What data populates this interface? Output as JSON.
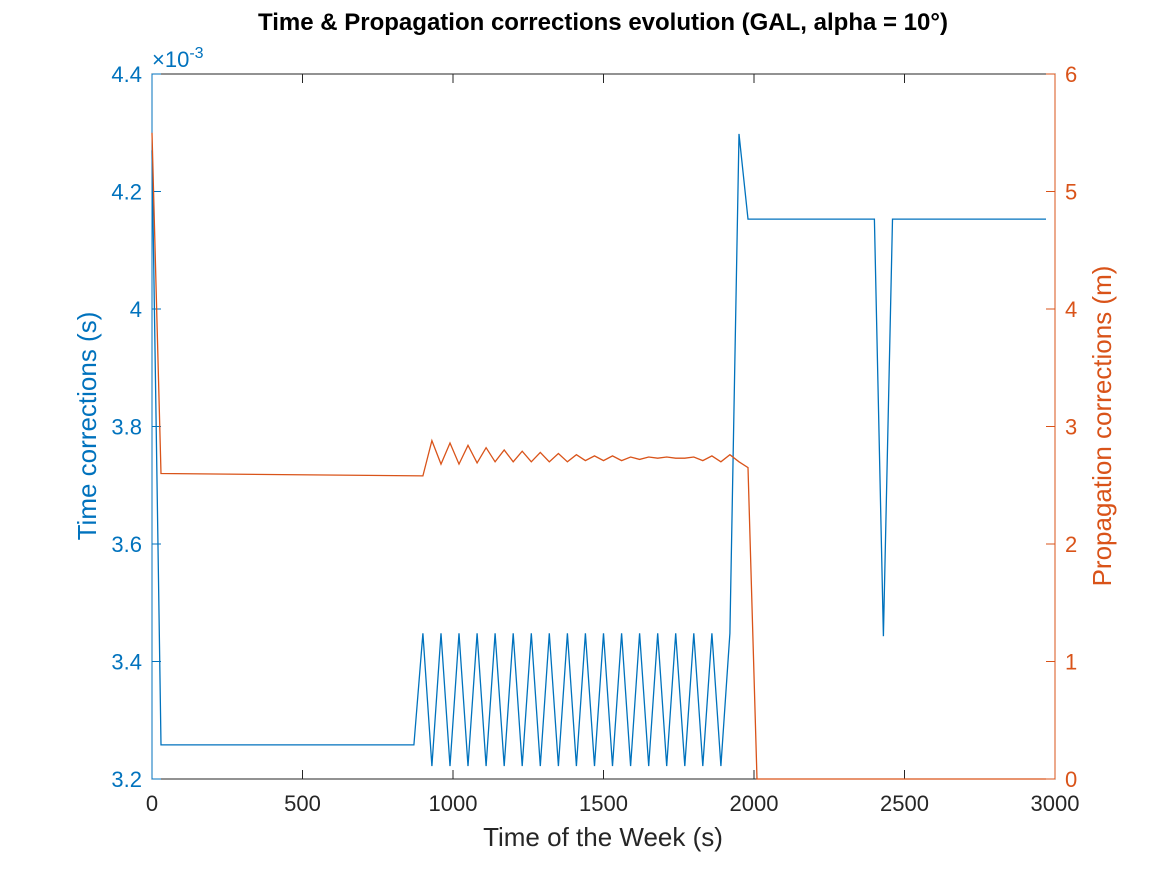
{
  "chart_data": {
    "type": "line",
    "title": "Time & Propagation corrections evolution (GAL, alpha = 10°)",
    "xlabel": "Time of the Week (s)",
    "xlim": [
      0,
      3000
    ],
    "xticks": [
      0,
      500,
      1000,
      1500,
      2000,
      2500,
      3000
    ],
    "left_axis": {
      "label": "Time corrections (s)",
      "ylim": [
        0.0032,
        0.0044
      ],
      "ticks": [
        3.2,
        3.4,
        3.6,
        3.8,
        4.0,
        4.2,
        4.4
      ],
      "tick_labels": [
        "3.2",
        "3.4",
        "3.6",
        "3.8",
        "4",
        "4.2",
        "4.4"
      ],
      "exponent_base": "×10",
      "exponent_power": "-3",
      "color": "#0072BD"
    },
    "right_axis": {
      "label": "Propagation corrections (m)",
      "ylim": [
        0,
        6
      ],
      "ticks": [
        0,
        1,
        2,
        3,
        4,
        5,
        6
      ],
      "tick_labels": [
        "0",
        "1",
        "2",
        "3",
        "4",
        "5",
        "6"
      ],
      "color": "#D95319"
    },
    "grid": false,
    "series": [
      {
        "axis": "left",
        "color": "#0072BD",
        "x": [
          0,
          30,
          870,
          900,
          930,
          960,
          990,
          1020,
          1050,
          1080,
          1110,
          1140,
          1170,
          1200,
          1230,
          1260,
          1290,
          1320,
          1350,
          1380,
          1410,
          1440,
          1470,
          1500,
          1530,
          1560,
          1590,
          1620,
          1650,
          1680,
          1710,
          1740,
          1770,
          1800,
          1830,
          1860,
          1890,
          1920,
          1950,
          1980,
          2010,
          2040,
          2070,
          2100,
          2130,
          2160,
          2190,
          2220,
          2250,
          2280,
          2310,
          2340,
          2370,
          2400,
          2430,
          2460,
          2490,
          2520,
          2550,
          2580,
          2610,
          2640,
          2670,
          2700,
          2730,
          2760,
          2790,
          2820,
          2850,
          2880,
          2910,
          2940,
          2970
        ],
        "y": [
          0.00427,
          0.003258,
          0.003258,
          0.003448,
          0.003222,
          0.003448,
          0.003222,
          0.003448,
          0.003222,
          0.003448,
          0.003222,
          0.003448,
          0.003222,
          0.003448,
          0.003222,
          0.003448,
          0.003222,
          0.003448,
          0.003222,
          0.003448,
          0.003222,
          0.003448,
          0.003222,
          0.003448,
          0.003222,
          0.003448,
          0.003222,
          0.003448,
          0.003222,
          0.003448,
          0.003222,
          0.003448,
          0.003222,
          0.003448,
          0.003222,
          0.003448,
          0.003222,
          0.003448,
          0.004298,
          0.004153,
          0.004153,
          0.004153,
          0.004153,
          0.004153,
          0.004153,
          0.004153,
          0.004153,
          0.004153,
          0.004153,
          0.004153,
          0.004153,
          0.004153,
          0.004153,
          0.004153,
          0.003443,
          0.004153,
          0.004153,
          0.004153,
          0.004153,
          0.004153,
          0.004153,
          0.004153,
          0.004153,
          0.004153,
          0.004153,
          0.004153,
          0.004153,
          0.004153,
          0.004153,
          0.004153,
          0.004153,
          0.004153,
          0.004153
        ]
      },
      {
        "axis": "right",
        "color": "#D95319",
        "x": [
          0,
          30,
          900,
          930,
          960,
          990,
          1020,
          1050,
          1080,
          1110,
          1140,
          1170,
          1200,
          1230,
          1260,
          1290,
          1320,
          1350,
          1380,
          1410,
          1440,
          1470,
          1500,
          1530,
          1560,
          1590,
          1620,
          1650,
          1680,
          1710,
          1740,
          1770,
          1800,
          1830,
          1860,
          1890,
          1920,
          1950,
          1980,
          2010,
          2040,
          2070,
          2100,
          2130,
          2160,
          2190,
          2220,
          2250,
          2280,
          2310,
          2340,
          2370,
          2400,
          2430,
          2460,
          2490,
          2520,
          2550,
          2580,
          2610,
          2640,
          2670,
          2700,
          2730,
          2760,
          2790,
          2820,
          2850,
          2880,
          2910,
          2940,
          2970
        ],
        "y": [
          5.5,
          2.6,
          2.58,
          2.88,
          2.68,
          2.86,
          2.68,
          2.84,
          2.69,
          2.82,
          2.7,
          2.8,
          2.7,
          2.79,
          2.7,
          2.78,
          2.7,
          2.77,
          2.7,
          2.76,
          2.71,
          2.75,
          2.71,
          2.75,
          2.71,
          2.74,
          2.72,
          2.74,
          2.73,
          2.74,
          2.73,
          2.73,
          2.74,
          2.71,
          2.75,
          2.7,
          2.76,
          2.7,
          2.65,
          0.0,
          0.0,
          0.0,
          0.0,
          0.0,
          0.0,
          0.0,
          0.0,
          0.0,
          0.0,
          0.0,
          0.0,
          0.0,
          0.0,
          0.0,
          0.0,
          0.0,
          0.0,
          0.0,
          0.0,
          0.0,
          0.0,
          0.0,
          0.0,
          0.0,
          0.0,
          0.0,
          0.0,
          0.0,
          0.0,
          0.0,
          0.0,
          0.0
        ]
      }
    ]
  }
}
